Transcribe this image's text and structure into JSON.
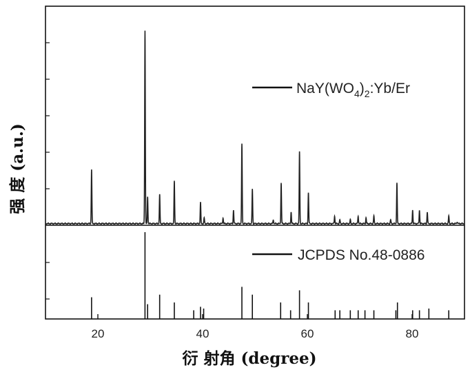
{
  "chart_data": {
    "type": "line",
    "xlabel": "衍 射角 (degree)",
    "ylabel": "强 度 (a.u.)",
    "xlim": [
      10,
      90
    ],
    "x_ticks": [
      20,
      40,
      60,
      80
    ],
    "grid": false,
    "series": [
      {
        "name": "NaY(WO4)2:Yb/Er",
        "legend_main": "NaY(WO",
        "legend_sub1": "4",
        "legend_mid": ")",
        "legend_sub2": "2",
        "legend_tail": ":Yb/Er",
        "ylim": [
          0,
          100
        ],
        "baseline": 0.5,
        "peaks": [
          {
            "x": 18.8,
            "y": 28
          },
          {
            "x": 29.0,
            "y": 100
          },
          {
            "x": 29.5,
            "y": 14
          },
          {
            "x": 31.8,
            "y": 15
          },
          {
            "x": 34.6,
            "y": 22
          },
          {
            "x": 39.6,
            "y": 11
          },
          {
            "x": 40.3,
            "y": 3
          },
          {
            "x": 43.9,
            "y": 3
          },
          {
            "x": 45.9,
            "y": 7
          },
          {
            "x": 47.5,
            "y": 41
          },
          {
            "x": 49.5,
            "y": 18
          },
          {
            "x": 53.5,
            "y": 2
          },
          {
            "x": 55.0,
            "y": 21
          },
          {
            "x": 56.9,
            "y": 6
          },
          {
            "x": 58.5,
            "y": 37
          },
          {
            "x": 60.2,
            "y": 16
          },
          {
            "x": 65.2,
            "y": 4
          },
          {
            "x": 66.2,
            "y": 2
          },
          {
            "x": 68.2,
            "y": 2
          },
          {
            "x": 69.7,
            "y": 4
          },
          {
            "x": 71.2,
            "y": 3
          },
          {
            "x": 72.7,
            "y": 4
          },
          {
            "x": 75.9,
            "y": 2
          },
          {
            "x": 77.1,
            "y": 21
          },
          {
            "x": 80.1,
            "y": 7
          },
          {
            "x": 81.4,
            "y": 7
          },
          {
            "x": 82.9,
            "y": 6
          },
          {
            "x": 87.0,
            "y": 4
          },
          {
            "x": 88.6,
            "y": 1
          }
        ]
      },
      {
        "name": "JCPDS No.48-0886",
        "type": "reference-bars",
        "ylim": [
          0,
          100
        ],
        "x": [
          18.8,
          29.0,
          29.5,
          31.8,
          34.6,
          38.3,
          39.6,
          40.2,
          47.5,
          49.5,
          54.9,
          56.8,
          58.5,
          60.2,
          65.3,
          66.2,
          68.2,
          69.7,
          71.0,
          72.7,
          76.9,
          77.2,
          80.1,
          81.4,
          83.2,
          87.0
        ],
        "values": [
          25,
          100,
          17,
          28,
          19,
          10,
          14,
          12,
          37,
          28,
          19,
          10,
          33,
          19,
          10,
          10,
          10,
          10,
          10,
          10,
          10,
          19,
          10,
          10,
          12,
          10
        ]
      }
    ]
  }
}
